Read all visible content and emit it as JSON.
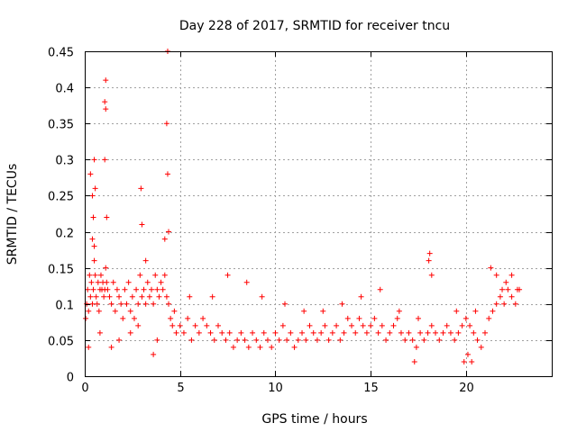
{
  "chart_data": {
    "type": "scatter",
    "title": "Day 228 of 2017, SRMTID for receiver tncu",
    "xlabel": "GPS time / hours",
    "ylabel": "SRMTID / TECUs",
    "xlim": [
      0,
      24.5
    ],
    "ylim": [
      0,
      0.45
    ],
    "xticks": [
      0,
      5,
      10,
      15,
      20
    ],
    "xtick_labels": [
      "0",
      "5",
      "10",
      "15",
      "20"
    ],
    "yticks": [
      0,
      0.05,
      0.1,
      0.15,
      0.2,
      0.25,
      0.3,
      0.35,
      0.4,
      0.45
    ],
    "ytick_labels": [
      "0",
      "0.05",
      "0.1",
      "0.15",
      "0.2",
      "0.25",
      "0.3",
      "0.35",
      "0.4",
      "0.45"
    ],
    "grid": true,
    "marker": "+",
    "color": "#ff0000",
    "series": [
      {
        "name": "SRMTID",
        "x": [
          0.05,
          0.1,
          0.15,
          0.2,
          0.25,
          0.3,
          0.35,
          0.4,
          0.45,
          0.5,
          0.55,
          0.6,
          0.65,
          0.7,
          0.75,
          0.8,
          0.85,
          0.9,
          0.95,
          1.0,
          1.05,
          1.1,
          1.15,
          1.2,
          1.3,
          1.4,
          1.5,
          1.6,
          1.7,
          1.8,
          1.9,
          2.0,
          2.1,
          2.2,
          2.3,
          2.4,
          2.5,
          2.6,
          2.7,
          2.8,
          2.9,
          3.0,
          3.1,
          3.2,
          3.3,
          3.4,
          3.5,
          3.6,
          3.7,
          3.8,
          3.9,
          4.0,
          4.1,
          4.2,
          4.3,
          4.4,
          4.5,
          4.6,
          4.7,
          4.8,
          5.0,
          5.2,
          5.4,
          5.6,
          5.8,
          6.0,
          6.2,
          6.4,
          6.6,
          6.8,
          7.0,
          7.2,
          7.4,
          7.6,
          7.8,
          8.0,
          8.2,
          8.4,
          8.6,
          8.8,
          9.0,
          9.2,
          9.4,
          9.6,
          9.8,
          10.0,
          10.2,
          10.4,
          10.6,
          10.8,
          11.0,
          11.2,
          11.4,
          11.6,
          11.8,
          12.0,
          12.2,
          12.4,
          12.6,
          12.8,
          13.0,
          13.2,
          13.4,
          13.6,
          13.8,
          14.0,
          14.2,
          14.4,
          14.6,
          14.8,
          15.0,
          15.2,
          15.4,
          15.6,
          15.8,
          16.0,
          16.2,
          16.4,
          16.6,
          16.8,
          17.0,
          17.2,
          17.4,
          17.6,
          17.8,
          18.0,
          18.2,
          18.4,
          18.6,
          18.8,
          19.0,
          19.2,
          19.4,
          19.6,
          19.8,
          20.0,
          20.2,
          20.4,
          20.6,
          20.8,
          21.0,
          21.2,
          21.4,
          21.6,
          21.8,
          22.0,
          22.2,
          22.4,
          22.6,
          22.8,
          0.3,
          0.4,
          0.45,
          0.5,
          0.55,
          1.05,
          1.1,
          1.1,
          1.05,
          1.15,
          2.95,
          3.0,
          4.35,
          4.3,
          4.35,
          4.4,
          0.4,
          0.5,
          3.2,
          4.2,
          18.1,
          18.05,
          18.2,
          21.3,
          21.6,
          22.4,
          5.5,
          6.7,
          7.5,
          8.5,
          9.3,
          10.5,
          11.5,
          12.5,
          13.5,
          14.5,
          15.5,
          16.5,
          17.5,
          19.5,
          20.5,
          21.9,
          22.1,
          22.7,
          0.8,
          1.8,
          2.8,
          3.8,
          3.6,
          2.4,
          1.4,
          0.2,
          19.9,
          20.1,
          20.3,
          17.3
        ],
        "y": [
          0.08,
          0.1,
          0.12,
          0.09,
          0.14,
          0.11,
          0.13,
          0.1,
          0.12,
          0.16,
          0.14,
          0.11,
          0.1,
          0.13,
          0.09,
          0.12,
          0.14,
          0.12,
          0.13,
          0.11,
          0.12,
          0.15,
          0.13,
          0.12,
          0.11,
          0.1,
          0.13,
          0.09,
          0.12,
          0.11,
          0.1,
          0.08,
          0.12,
          0.1,
          0.13,
          0.09,
          0.11,
          0.08,
          0.12,
          0.1,
          0.14,
          0.11,
          0.12,
          0.1,
          0.13,
          0.11,
          0.12,
          0.1,
          0.14,
          0.12,
          0.11,
          0.13,
          0.12,
          0.14,
          0.11,
          0.1,
          0.08,
          0.07,
          0.09,
          0.06,
          0.07,
          0.06,
          0.08,
          0.05,
          0.07,
          0.06,
          0.08,
          0.07,
          0.06,
          0.05,
          0.07,
          0.06,
          0.05,
          0.06,
          0.04,
          0.05,
          0.06,
          0.05,
          0.04,
          0.06,
          0.05,
          0.04,
          0.06,
          0.05,
          0.04,
          0.06,
          0.05,
          0.07,
          0.05,
          0.06,
          0.04,
          0.05,
          0.06,
          0.05,
          0.07,
          0.06,
          0.05,
          0.06,
          0.07,
          0.05,
          0.06,
          0.07,
          0.05,
          0.06,
          0.08,
          0.07,
          0.06,
          0.08,
          0.07,
          0.06,
          0.07,
          0.08,
          0.06,
          0.07,
          0.05,
          0.06,
          0.07,
          0.08,
          0.06,
          0.05,
          0.06,
          0.05,
          0.04,
          0.06,
          0.05,
          0.06,
          0.07,
          0.06,
          0.05,
          0.06,
          0.07,
          0.06,
          0.05,
          0.06,
          0.07,
          0.08,
          0.07,
          0.06,
          0.05,
          0.04,
          0.06,
          0.08,
          0.09,
          0.1,
          0.11,
          0.1,
          0.12,
          0.11,
          0.1,
          0.12,
          0.28,
          0.25,
          0.22,
          0.3,
          0.26,
          0.38,
          0.41,
          0.37,
          0.3,
          0.22,
          0.26,
          0.21,
          0.45,
          0.35,
          0.28,
          0.2,
          0.19,
          0.18,
          0.16,
          0.19,
          0.17,
          0.16,
          0.14,
          0.15,
          0.14,
          0.14,
          0.11,
          0.11,
          0.14,
          0.13,
          0.11,
          0.1,
          0.09,
          0.09,
          0.1,
          0.11,
          0.12,
          0.09,
          0.08,
          0.09,
          0.09,
          0.12,
          0.13,
          0.12,
          0.06,
          0.05,
          0.07,
          0.05,
          0.03,
          0.06,
          0.04,
          0.04,
          0.02,
          0.03,
          0.02,
          0.02
        ]
      }
    ]
  }
}
